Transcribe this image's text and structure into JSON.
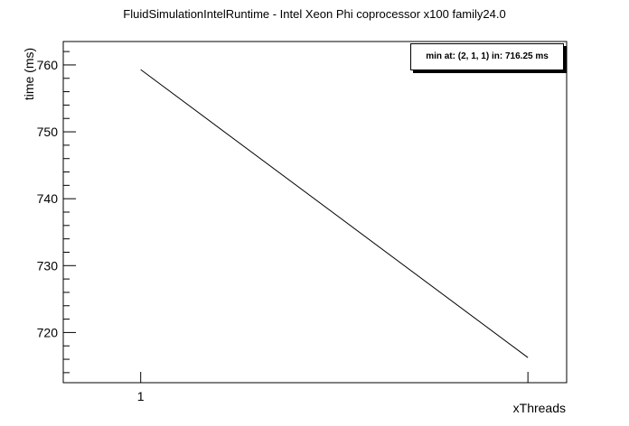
{
  "chart_data": {
    "type": "line",
    "title": "FluidSimulationIntelRuntime - Intel Xeon Phi coprocessor x100 family24.0",
    "xlabel": "xThreads",
    "ylabel": "time (ms)",
    "x_ticks": [
      "1"
    ],
    "y_ticks": [
      720,
      730,
      740,
      750,
      760
    ],
    "ylim": [
      712.5,
      763.5
    ],
    "xlim": [
      0.8,
      2.1
    ],
    "series": [
      {
        "x": [
          1,
          2
        ],
        "values": [
          759.3,
          716.25
        ]
      }
    ],
    "annotation": "min at: (2, 1, 1) in: 716.25 ms",
    "legend_position": "top-right",
    "grid": false
  },
  "colors": {
    "line": "#000000",
    "frame": "#000000",
    "background": "#ffffff"
  }
}
